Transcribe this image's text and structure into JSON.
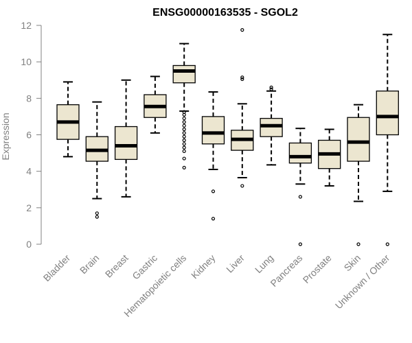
{
  "chart_data": {
    "type": "boxplot",
    "title": "ENSG00000163535 - SGOL2",
    "ylabel": "Expression",
    "xlabel": "",
    "ylim": [
      0,
      12
    ],
    "yticks": [
      0,
      2,
      4,
      6,
      8,
      10,
      12
    ],
    "grid": false,
    "box_fill": "#ece6d0",
    "categories": [
      "Bladder",
      "Brain",
      "Breast",
      "Gastric",
      "Hematopoietic cells",
      "Kidney",
      "Liver",
      "Lung",
      "Pancreas",
      "Prostate",
      "Skin",
      "Unknown / Other"
    ],
    "boxes": [
      {
        "label": "Bladder",
        "whisker_low": 4.8,
        "q1": 5.75,
        "median": 6.7,
        "q3": 7.65,
        "whisker_high": 8.9,
        "outliers": []
      },
      {
        "label": "Brain",
        "whisker_low": 2.5,
        "q1": 4.55,
        "median": 5.15,
        "q3": 5.9,
        "whisker_high": 7.8,
        "outliers": [
          1.5,
          1.7
        ]
      },
      {
        "label": "Breast",
        "whisker_low": 2.6,
        "q1": 4.65,
        "median": 5.4,
        "q3": 6.45,
        "whisker_high": 9.0,
        "outliers": []
      },
      {
        "label": "Gastric",
        "whisker_low": 6.1,
        "q1": 6.95,
        "median": 7.55,
        "q3": 8.2,
        "whisker_high": 9.2,
        "outliers": []
      },
      {
        "label": "Hematopoietic cells",
        "whisker_low": 7.3,
        "q1": 8.85,
        "median": 9.5,
        "q3": 9.8,
        "whisker_high": 11.0,
        "outliers": [
          4.2,
          4.7,
          5.1,
          5.3,
          5.5,
          5.7,
          5.9,
          6.1,
          6.3,
          6.5,
          6.7,
          6.9,
          7.1,
          7.25
        ]
      },
      {
        "label": "Kidney",
        "whisker_low": 4.1,
        "q1": 5.5,
        "median": 6.1,
        "q3": 7.0,
        "whisker_high": 8.35,
        "outliers": [
          1.4,
          2.9
        ]
      },
      {
        "label": "Liver",
        "whisker_low": 3.65,
        "q1": 5.15,
        "median": 5.75,
        "q3": 6.25,
        "whisker_high": 7.7,
        "outliers": [
          3.2,
          9.05,
          9.15,
          11.75
        ]
      },
      {
        "label": "Lung",
        "whisker_low": 4.35,
        "q1": 5.9,
        "median": 6.5,
        "q3": 6.9,
        "whisker_high": 8.4,
        "outliers": [
          8.5,
          8.6
        ]
      },
      {
        "label": "Pancreas",
        "whisker_low": 3.3,
        "q1": 4.45,
        "median": 4.8,
        "q3": 5.55,
        "whisker_high": 6.35,
        "outliers": [
          0.0,
          2.6
        ]
      },
      {
        "label": "Prostate",
        "whisker_low": 3.2,
        "q1": 4.15,
        "median": 4.95,
        "q3": 5.7,
        "whisker_high": 6.3,
        "outliers": []
      },
      {
        "label": "Skin",
        "whisker_low": 2.35,
        "q1": 4.55,
        "median": 5.6,
        "q3": 6.95,
        "whisker_high": 7.65,
        "outliers": [
          0.0
        ]
      },
      {
        "label": "Unknown / Other",
        "whisker_low": 2.9,
        "q1": 6.0,
        "median": 7.0,
        "q3": 8.4,
        "whisker_high": 11.5,
        "outliers": [
          0.0
        ]
      }
    ]
  }
}
